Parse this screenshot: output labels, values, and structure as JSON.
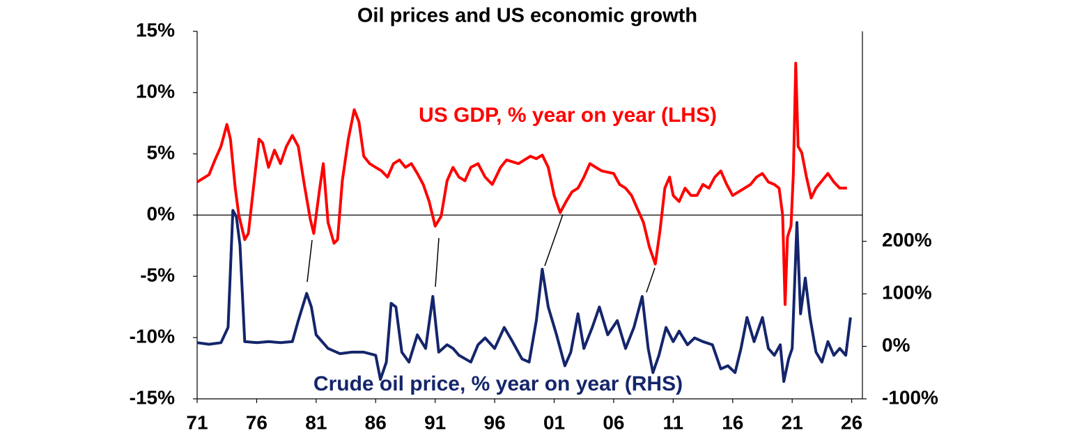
{
  "chart_data": {
    "type": "line",
    "title": "Oil prices and US economic growth",
    "xlim": [
      1971,
      2026.9
    ],
    "xticks": [
      {
        "value": 1971,
        "label": "71"
      },
      {
        "value": 1976,
        "label": "76"
      },
      {
        "value": 1981,
        "label": "81"
      },
      {
        "value": 1986,
        "label": "86"
      },
      {
        "value": 1991,
        "label": "91"
      },
      {
        "value": 1996,
        "label": "96"
      },
      {
        "value": 2001,
        "label": "01"
      },
      {
        "value": 2006,
        "label": "06"
      },
      {
        "value": 2011,
        "label": "11"
      },
      {
        "value": 2016,
        "label": "16"
      },
      {
        "value": 2021,
        "label": "21"
      },
      {
        "value": 2026,
        "label": "26"
      }
    ],
    "ylim": [
      -15,
      15
    ],
    "yticks": [
      {
        "value": 15,
        "label": "15%"
      },
      {
        "value": 10,
        "label": "10%"
      },
      {
        "value": 5,
        "label": "5%"
      },
      {
        "value": 0,
        "label": "0%"
      },
      {
        "value": -5,
        "label": "-5%"
      },
      {
        "value": -10,
        "label": "-10%"
      },
      {
        "value": -15,
        "label": "-15%"
      }
    ],
    "y2lim": [
      -100,
      600
    ],
    "y2ticks": [
      {
        "value": 200,
        "label": "200%"
      },
      {
        "value": 100,
        "label": "100%"
      },
      {
        "value": 0,
        "label": "0%"
      },
      {
        "value": -100,
        "label": "-100%"
      }
    ],
    "zero_line": true,
    "series": [
      {
        "name": "US GDP, % year on year (LHS)",
        "color": "#ff0000",
        "axis": "y",
        "x": [
          1971,
          1972,
          1972.5,
          1973,
          1973.5,
          1973.8,
          1974.2,
          1974.5,
          1975,
          1975.3,
          1975.8,
          1976.2,
          1976.5,
          1977,
          1977.5,
          1978,
          1978.5,
          1979,
          1979.5,
          1980,
          1980.5,
          1980.8,
          1981.3,
          1981.6,
          1982,
          1982.5,
          1982.8,
          1983.2,
          1983.7,
          1984.2,
          1984.6,
          1985,
          1985.5,
          1986,
          1986.5,
          1987,
          1987.5,
          1988,
          1988.5,
          1989,
          1989.5,
          1990,
          1990.5,
          1991,
          1991.5,
          1992,
          1992.5,
          1993,
          1993.5,
          1994,
          1994.6,
          1995.2,
          1995.8,
          1996.5,
          1997,
          1998,
          1998.5,
          1999,
          1999.5,
          2000,
          2000.5,
          2001,
          2001.5,
          2002,
          2002.5,
          2003,
          2003.5,
          2004,
          2004.5,
          2005,
          2006,
          2006.5,
          2007,
          2007.5,
          2008,
          2008.5,
          2009,
          2009.5,
          2009.9,
          2010.3,
          2010.7,
          2011,
          2011.5,
          2012,
          2012.5,
          2013,
          2013.5,
          2014,
          2014.5,
          2015,
          2015.5,
          2016,
          2016.5,
          2017,
          2017.5,
          2018,
          2018.5,
          2019,
          2019.5,
          2019.9,
          2020.2,
          2020.4,
          2020.6,
          2020.9,
          2021.1,
          2021.3,
          2021.5,
          2021.8,
          2022.2,
          2022.6,
          2023,
          2023.5,
          2024,
          2024.5,
          2025,
          2025.6
        ],
        "values": [
          2.7,
          3.3,
          4.5,
          5.6,
          7.4,
          6.2,
          2.2,
          0,
          -2.0,
          -1.5,
          2.8,
          6.2,
          5.9,
          3.9,
          5.3,
          4.2,
          5.6,
          6.5,
          5.6,
          2.5,
          -0.3,
          -1.5,
          2.2,
          4.2,
          -0.6,
          -2.3,
          -2.0,
          2.8,
          6.2,
          8.6,
          7.6,
          4.8,
          4.2,
          3.9,
          3.6,
          3.1,
          4.2,
          4.5,
          3.9,
          4.2,
          3.4,
          2.5,
          1.1,
          -0.9,
          -0.1,
          2.8,
          3.9,
          3.1,
          2.8,
          3.9,
          4.2,
          3.1,
          2.5,
          3.9,
          4.5,
          4.2,
          4.5,
          4.8,
          4.6,
          4.9,
          3.9,
          1.6,
          0.2,
          1.1,
          1.9,
          2.2,
          3.1,
          4.2,
          3.9,
          3.6,
          3.4,
          2.5,
          2.2,
          1.6,
          0.5,
          -0.6,
          -2.6,
          -4.0,
          -1.2,
          2.2,
          3.1,
          1.6,
          1.1,
          2.2,
          1.6,
          1.6,
          2.5,
          2.2,
          3.1,
          3.6,
          2.5,
          1.6,
          1.9,
          2.2,
          2.5,
          3.1,
          3.4,
          2.7,
          2.5,
          2.2,
          0,
          -7.3,
          -1.8,
          -0.9,
          3.4,
          12.4,
          5.6,
          5.1,
          3.1,
          1.4,
          2.2,
          2.8,
          3.4,
          2.7,
          2.2,
          2.2
        ]
      },
      {
        "name": "Crude oil price, % year on year (RHS)",
        "color": "#14256b",
        "axis": "y2",
        "x": [
          1971,
          1972,
          1973,
          1973.6,
          1974,
          1974.3,
          1974.6,
          1975,
          1976,
          1977,
          1978,
          1979,
          1979.5,
          1980.2,
          1980.6,
          1981,
          1982,
          1983,
          1984,
          1985,
          1986,
          1986.4,
          1986.9,
          1987.3,
          1987.7,
          1988.2,
          1988.8,
          1989.5,
          1990.2,
          1990.8,
          1991.3,
          1992,
          1992.5,
          1993,
          1994,
          1994.6,
          1995.2,
          1996,
          1996.8,
          1997.5,
          1998.3,
          1998.9,
          1999.5,
          2000,
          2000.5,
          2001.2,
          2001.9,
          2002.4,
          2003,
          2003.5,
          2004.2,
          2004.8,
          2005.5,
          2006.3,
          2007,
          2007.7,
          2008.4,
          2008.9,
          2009.3,
          2009.8,
          2010.4,
          2011,
          2011.5,
          2012.2,
          2012.8,
          2013.5,
          2014.3,
          2015,
          2015.6,
          2016.2,
          2016.7,
          2017.2,
          2017.8,
          2018.5,
          2019,
          2019.5,
          2020,
          2020.3,
          2020.7,
          2021,
          2021.4,
          2021.7,
          2022.1,
          2022.5,
          2023,
          2023.5,
          2024,
          2024.5,
          2025,
          2025.5,
          2025.9
        ],
        "values": [
          7,
          4,
          7,
          36,
          259,
          246,
          193,
          9,
          7,
          9,
          7,
          9,
          49,
          101,
          75,
          22,
          -4,
          -14,
          -11,
          -11,
          -17,
          -63,
          -30,
          82,
          75,
          -11,
          -30,
          22,
          -4,
          95,
          -11,
          3,
          -4,
          -17,
          -30,
          3,
          16,
          -4,
          36,
          9,
          -24,
          -30,
          49,
          147,
          75,
          22,
          -37,
          -11,
          62,
          -4,
          36,
          75,
          22,
          49,
          -4,
          36,
          95,
          -4,
          -50,
          -17,
          36,
          9,
          29,
          3,
          16,
          9,
          3,
          -43,
          -37,
          -50,
          -4,
          55,
          9,
          55,
          -4,
          -17,
          3,
          -67,
          -24,
          -4,
          236,
          62,
          130,
          55,
          -11,
          -30,
          9,
          -17,
          -4,
          -17,
          55
        ]
      }
    ]
  }
}
